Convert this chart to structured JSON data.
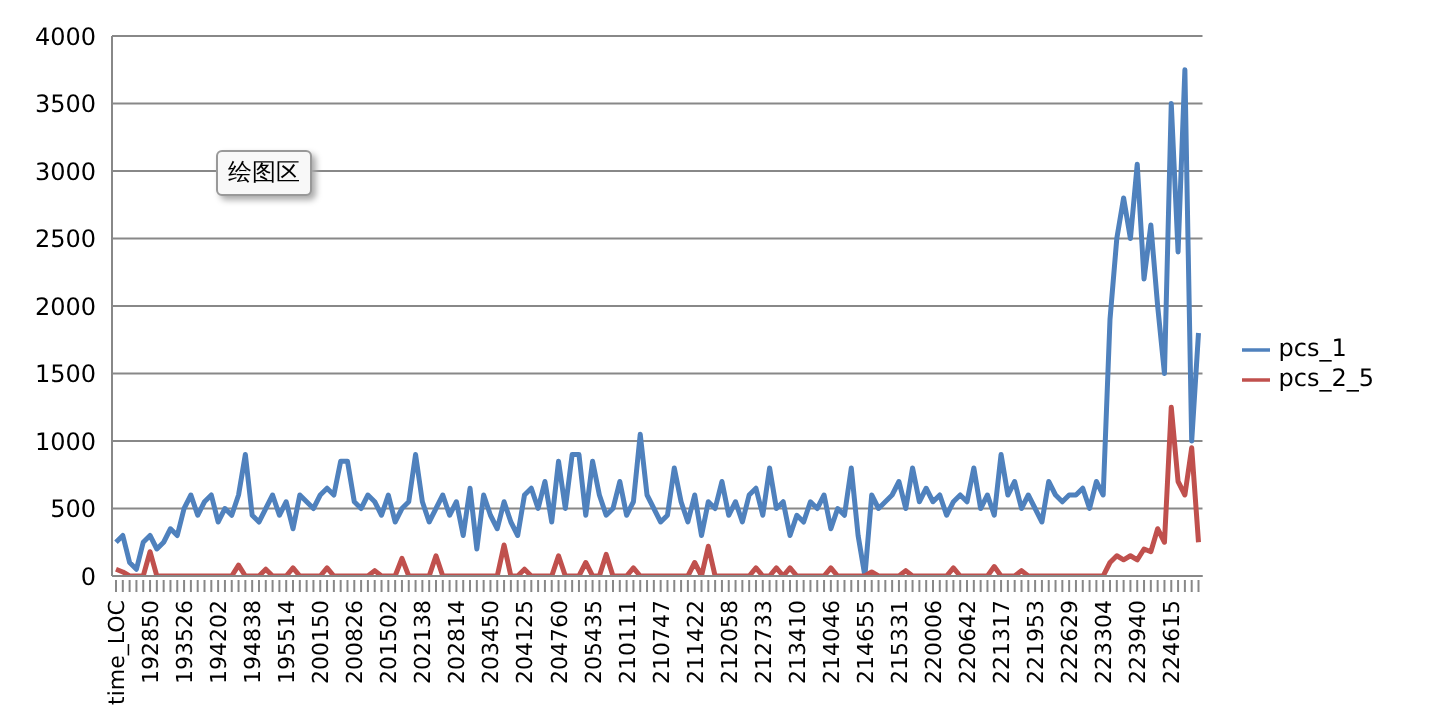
{
  "chart_data": {
    "type": "line",
    "categories": [
      "time_LOC",
      null,
      null,
      null,
      null,
      "192850",
      null,
      null,
      null,
      null,
      "193526",
      null,
      null,
      null,
      null,
      "194202",
      null,
      null,
      null,
      null,
      "194838",
      null,
      null,
      null,
      null,
      "195514",
      null,
      null,
      null,
      null,
      "200150",
      null,
      null,
      null,
      null,
      "200826",
      null,
      null,
      null,
      null,
      "201502",
      null,
      null,
      null,
      null,
      "202138",
      null,
      null,
      null,
      null,
      "202814",
      null,
      null,
      null,
      null,
      "203450",
      null,
      null,
      null,
      null,
      "204125",
      null,
      null,
      null,
      null,
      "204760",
      null,
      null,
      null,
      null,
      "205435",
      null,
      null,
      null,
      null,
      "210111",
      null,
      null,
      null,
      null,
      "210747",
      null,
      null,
      null,
      null,
      "211422",
      null,
      null,
      null,
      null,
      "212058",
      null,
      null,
      null,
      null,
      "212733",
      null,
      null,
      null,
      null,
      "213410",
      null,
      null,
      null,
      null,
      "214046",
      null,
      null,
      null,
      null,
      "214655",
      null,
      null,
      null,
      null,
      "215331",
      null,
      null,
      null,
      null,
      "220006",
      null,
      null,
      null,
      null,
      "220642",
      null,
      null,
      null,
      null,
      "221317",
      null,
      null,
      null,
      null,
      "221953",
      null,
      null,
      null,
      null,
      "222629",
      null,
      null,
      null,
      null,
      "223304",
      null,
      null,
      null,
      null,
      "223940",
      null,
      null,
      null,
      null,
      "224615",
      null,
      null,
      null,
      null
    ],
    "series": [
      {
        "name": "pcs_1",
        "color": "#4f81bd",
        "values": [
          250,
          300,
          100,
          50,
          250,
          300,
          200,
          250,
          350,
          300,
          500,
          600,
          450,
          550,
          600,
          400,
          500,
          450,
          600,
          900,
          450,
          400,
          500,
          600,
          450,
          550,
          350,
          600,
          550,
          500,
          600,
          650,
          600,
          850,
          850,
          550,
          500,
          600,
          550,
          450,
          600,
          400,
          500,
          550,
          900,
          550,
          400,
          500,
          600,
          450,
          550,
          300,
          650,
          200,
          600,
          450,
          350,
          550,
          400,
          300,
          600,
          650,
          500,
          700,
          400,
          850,
          500,
          900,
          900,
          450,
          850,
          600,
          450,
          500,
          700,
          450,
          550,
          1050,
          600,
          500,
          400,
          450,
          800,
          550,
          400,
          600,
          300,
          550,
          500,
          700,
          450,
          550,
          400,
          600,
          650,
          450,
          800,
          500,
          550,
          300,
          450,
          400,
          550,
          500,
          600,
          350,
          500,
          450,
          800,
          300,
          0,
          600,
          500,
          550,
          600,
          700,
          500,
          800,
          550,
          650,
          550,
          600,
          450,
          550,
          600,
          550,
          800,
          500,
          600,
          450,
          900,
          600,
          700,
          500,
          600,
          500,
          400,
          700,
          600,
          550,
          600,
          600,
          650,
          500,
          700,
          600,
          1900,
          2500,
          2800,
          2500,
          3050,
          2200,
          2600,
          2000,
          1500,
          3500,
          2400,
          3750,
          1000,
          1800
        ]
      },
      {
        "name": "pcs_2_5",
        "color": "#c0504d",
        "values": [
          50,
          30,
          0,
          0,
          0,
          180,
          0,
          0,
          0,
          0,
          0,
          0,
          0,
          0,
          0,
          0,
          0,
          0,
          80,
          0,
          0,
          0,
          50,
          0,
          0,
          0,
          60,
          0,
          0,
          0,
          0,
          60,
          0,
          0,
          0,
          0,
          0,
          0,
          40,
          0,
          0,
          0,
          130,
          0,
          0,
          0,
          0,
          150,
          0,
          0,
          0,
          0,
          0,
          0,
          0,
          0,
          0,
          230,
          0,
          0,
          50,
          0,
          0,
          0,
          0,
          150,
          0,
          0,
          0,
          100,
          0,
          0,
          160,
          0,
          0,
          0,
          60,
          0,
          0,
          0,
          0,
          0,
          0,
          0,
          0,
          100,
          0,
          220,
          0,
          0,
          0,
          0,
          0,
          0,
          60,
          0,
          0,
          60,
          0,
          60,
          0,
          0,
          0,
          0,
          0,
          60,
          0,
          0,
          0,
          0,
          0,
          30,
          0,
          0,
          0,
          0,
          40,
          0,
          0,
          0,
          0,
          0,
          0,
          60,
          0,
          0,
          0,
          0,
          0,
          70,
          0,
          0,
          0,
          40,
          0,
          0,
          0,
          0,
          0,
          0,
          0,
          0,
          0,
          0,
          0,
          0,
          100,
          150,
          120,
          150,
          120,
          200,
          180,
          350,
          250,
          1250,
          700,
          600,
          950,
          250
        ]
      }
    ],
    "ylim": [
      0,
      4000
    ],
    "yticks": [
      0,
      500,
      1000,
      1500,
      2000,
      2500,
      3000,
      3500,
      4000
    ],
    "grid": "y",
    "legend": "right",
    "annotations": [
      "绘图区"
    ]
  }
}
